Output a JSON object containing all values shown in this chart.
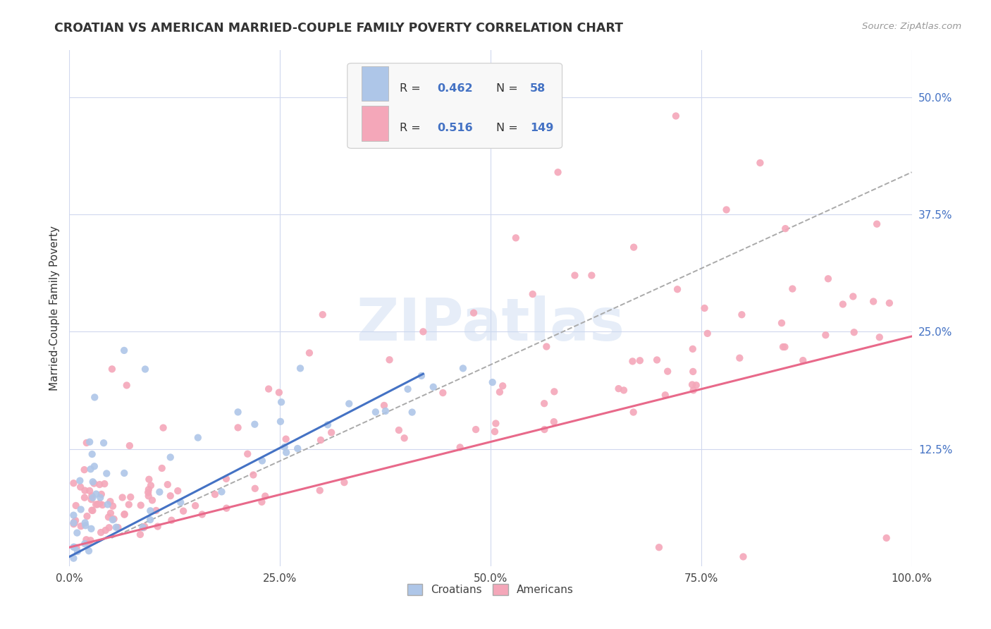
{
  "title": "CROATIAN VS AMERICAN MARRIED-COUPLE FAMILY POVERTY CORRELATION CHART",
  "source": "Source: ZipAtlas.com",
  "ylabel": "Married-Couple Family Poverty",
  "xlabel": "",
  "watermark": "ZIPatlas",
  "croatian_R": 0.462,
  "croatian_N": 58,
  "american_R": 0.516,
  "american_N": 149,
  "xlim": [
    0,
    1.0
  ],
  "ylim": [
    0,
    0.55
  ],
  "xtick_labels": [
    "0.0%",
    "25.0%",
    "50.0%",
    "75.0%",
    "100.0%"
  ],
  "ytick_labels": [
    "",
    "12.5%",
    "25.0%",
    "37.5%",
    "50.0%"
  ],
  "croatian_color": "#aec6e8",
  "american_color": "#f4a7b9",
  "croatian_line_color": "#4472c4",
  "american_line_color": "#e8698a",
  "trendline_color": "#aaaaaa",
  "background_color": "#ffffff",
  "grid_color": "#d0d8ee",
  "legend_label_croatians": "Croatians",
  "legend_label_americans": "Americans",
  "blue_text": "#4472c4",
  "dark_text": "#333333",
  "ytick_color": "#4472c4",
  "xtick_color": "#444444",
  "cr_trendline_x0": 0.0,
  "cr_trendline_y0": 0.01,
  "cr_trendline_x1": 0.42,
  "cr_trendline_y1": 0.205,
  "am_trendline_x0": 0.0,
  "am_trendline_y0": 0.02,
  "am_trendline_x1": 1.0,
  "am_trendline_y1": 0.245,
  "dash_trendline_x0": 0.05,
  "dash_trendline_y0": 0.03,
  "dash_trendline_x1": 1.0,
  "dash_trendline_y1": 0.42
}
